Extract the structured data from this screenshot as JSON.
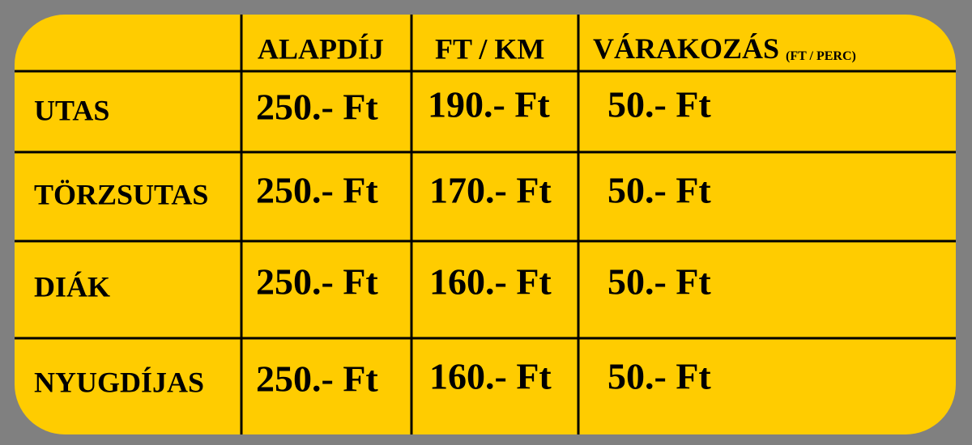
{
  "table": {
    "header": [
      "ALAPDÍJ",
      "FT / KM",
      "VÁRAKOZÁS"
    ],
    "header_unit": "(FT / PERC)",
    "rows": [
      {
        "label": "UTAS",
        "values": [
          "250.- Ft",
          "190.- Ft",
          "50.- Ft"
        ]
      },
      {
        "label": "TÖRZSUTAS",
        "values": [
          "250.- Ft",
          "170.- Ft",
          "50.- Ft"
        ]
      },
      {
        "label": "DIÁK",
        "values": [
          "250.- Ft",
          "160.- Ft",
          "50.- Ft"
        ]
      },
      {
        "label": "NYUGDÍJAS",
        "values": [
          "250.- Ft",
          "160.- Ft",
          "50.- Ft"
        ]
      }
    ]
  }
}
